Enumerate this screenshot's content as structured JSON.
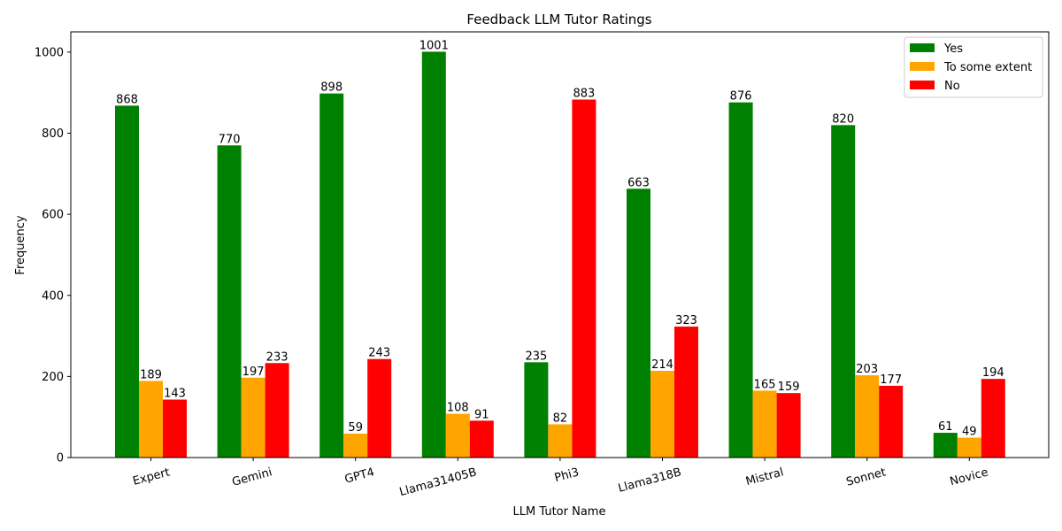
{
  "chart_data": {
    "type": "bar",
    "title": "Feedback LLM Tutor Ratings",
    "xlabel": "LLM Tutor Name",
    "ylabel": "Frequency",
    "ylim": [
      0,
      1050
    ],
    "yticks": [
      0,
      200,
      400,
      600,
      800,
      1000
    ],
    "categories": [
      "Expert",
      "Gemini",
      "GPT4",
      "Llama31405B",
      "Phi3",
      "Llama318B",
      "Mistral",
      "Sonnet",
      "Novice"
    ],
    "series": [
      {
        "name": "Yes",
        "color": "#008000",
        "values": [
          868,
          770,
          898,
          1001,
          235,
          663,
          876,
          820,
          61
        ]
      },
      {
        "name": "To some extent",
        "color": "#ffa500",
        "values": [
          189,
          197,
          59,
          108,
          82,
          214,
          165,
          203,
          49
        ]
      },
      {
        "name": "No",
        "color": "#ff0000",
        "values": [
          143,
          233,
          243,
          91,
          883,
          323,
          159,
          177,
          194
        ]
      }
    ],
    "legend_position": "top-right",
    "grid": false
  }
}
